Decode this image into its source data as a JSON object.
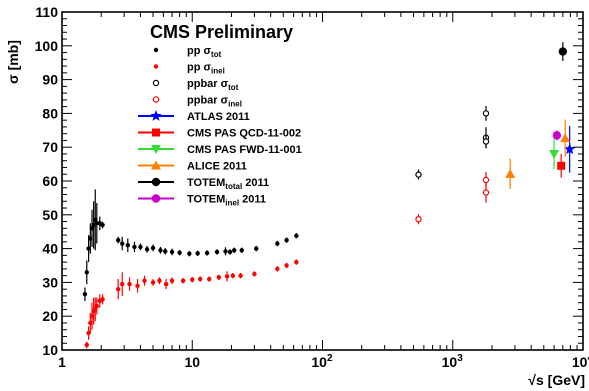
{
  "chart_data": {
    "type": "scatter",
    "title": "CMS Preliminary",
    "xlabel": "√s [GeV]",
    "ylabel": "σ [mb]",
    "x_scale": "log",
    "xlim": [
      1,
      10000
    ],
    "ylim": [
      10,
      110
    ],
    "x_tick_labels": [
      "1",
      "10",
      "10",
      "10",
      "10"
    ],
    "x_tick_label_exponents": [
      "",
      "",
      "2",
      "3",
      "4"
    ],
    "y_tick_labels": [
      "10",
      "20",
      "30",
      "40",
      "50",
      "60",
      "70",
      "80",
      "90",
      "100",
      "110"
    ],
    "grid": false,
    "legend_position": "top-left",
    "series": [
      {
        "name": "pp σ_tot",
        "label_main": "pp σ",
        "label_sub": "tot",
        "color": "#000000",
        "marker": "dot",
        "points": [
          {
            "x": 1.5,
            "y": 26.5,
            "err": 2.0
          },
          {
            "x": 1.55,
            "y": 33.0,
            "err": 3.5
          },
          {
            "x": 1.6,
            "y": 40.0,
            "err": 4.0
          },
          {
            "x": 1.65,
            "y": 43.0,
            "err": 4.5
          },
          {
            "x": 1.7,
            "y": 46.0,
            "err": 5.5
          },
          {
            "x": 1.75,
            "y": 47.0,
            "err": 7.0
          },
          {
            "x": 1.8,
            "y": 48.5,
            "err": 9.0
          },
          {
            "x": 1.85,
            "y": 47.5,
            "err": 6.0
          },
          {
            "x": 1.95,
            "y": 47.5,
            "err": 2.0
          },
          {
            "x": 2.05,
            "y": 47.0,
            "err": 1.0
          },
          {
            "x": 2.7,
            "y": 42.5,
            "err": 1.0
          },
          {
            "x": 2.9,
            "y": 41.5,
            "err": 2.0
          },
          {
            "x": 3.2,
            "y": 41.0,
            "err": 2.0
          },
          {
            "x": 3.6,
            "y": 40.5,
            "err": 1.5
          },
          {
            "x": 4.0,
            "y": 40.5,
            "err": 1.0
          },
          {
            "x": 4.5,
            "y": 39.8,
            "err": 1.0
          },
          {
            "x": 5.0,
            "y": 40.2,
            "err": 1.0
          },
          {
            "x": 5.7,
            "y": 39.5,
            "err": 1.0
          },
          {
            "x": 6.2,
            "y": 39.2,
            "err": 1.0
          },
          {
            "x": 7.0,
            "y": 39.0,
            "err": 1.0
          },
          {
            "x": 8.0,
            "y": 38.8,
            "err": 0.8
          },
          {
            "x": 9.5,
            "y": 38.5,
            "err": 0.8
          },
          {
            "x": 11.0,
            "y": 38.6,
            "err": 0.8
          },
          {
            "x": 13.0,
            "y": 38.7,
            "err": 0.8
          },
          {
            "x": 15.5,
            "y": 39.0,
            "err": 0.8
          },
          {
            "x": 18.0,
            "y": 39.2,
            "err": 1.2
          },
          {
            "x": 19.5,
            "y": 39.0,
            "err": 0.8
          },
          {
            "x": 21.0,
            "y": 39.5,
            "err": 0.8
          },
          {
            "x": 24.0,
            "y": 39.5,
            "err": 0.8
          },
          {
            "x": 31.0,
            "y": 40.0,
            "err": 0.8
          },
          {
            "x": 45.0,
            "y": 41.5,
            "err": 0.8
          },
          {
            "x": 53.0,
            "y": 42.5,
            "err": 0.8
          },
          {
            "x": 63.0,
            "y": 43.8,
            "err": 0.8
          }
        ]
      },
      {
        "name": "pp σ_inel",
        "label_main": "pp σ",
        "label_sub": "inel",
        "color": "#ff0000",
        "marker": "dot",
        "points": [
          {
            "x": 1.55,
            "y": 11.5,
            "err": 1.0
          },
          {
            "x": 1.6,
            "y": 15.0,
            "err": 2.0
          },
          {
            "x": 1.65,
            "y": 18.0,
            "err": 3.0
          },
          {
            "x": 1.7,
            "y": 20.0,
            "err": 4.0
          },
          {
            "x": 1.75,
            "y": 21.5,
            "err": 4.0
          },
          {
            "x": 1.8,
            "y": 22.0,
            "err": 3.5
          },
          {
            "x": 1.85,
            "y": 23.0,
            "err": 2.5
          },
          {
            "x": 1.95,
            "y": 24.5,
            "err": 2.0
          },
          {
            "x": 2.05,
            "y": 25.0,
            "err": 1.5
          },
          {
            "x": 2.7,
            "y": 28.0,
            "err": 3.0
          },
          {
            "x": 2.9,
            "y": 29.5,
            "err": 3.5
          },
          {
            "x": 3.3,
            "y": 29.5,
            "err": 2.0
          },
          {
            "x": 3.8,
            "y": 29.0,
            "err": 2.0
          },
          {
            "x": 4.3,
            "y": 30.5,
            "err": 1.5
          },
          {
            "x": 5.0,
            "y": 30.0,
            "err": 1.0
          },
          {
            "x": 5.6,
            "y": 30.5,
            "err": 1.0
          },
          {
            "x": 6.3,
            "y": 29.5,
            "err": 1.5
          },
          {
            "x": 7.0,
            "y": 30.5,
            "err": 1.0
          },
          {
            "x": 8.5,
            "y": 30.5,
            "err": 0.8
          },
          {
            "x": 10.0,
            "y": 30.8,
            "err": 0.8
          },
          {
            "x": 11.5,
            "y": 31.0,
            "err": 0.8
          },
          {
            "x": 13.5,
            "y": 31.0,
            "err": 0.8
          },
          {
            "x": 16.0,
            "y": 31.5,
            "err": 0.8
          },
          {
            "x": 18.5,
            "y": 31.8,
            "err": 1.5
          },
          {
            "x": 20.5,
            "y": 32.0,
            "err": 0.8
          },
          {
            "x": 23.5,
            "y": 32.0,
            "err": 0.8
          },
          {
            "x": 30.0,
            "y": 32.5,
            "err": 0.8
          },
          {
            "x": 45.0,
            "y": 34.0,
            "err": 0.8
          },
          {
            "x": 53.0,
            "y": 35.0,
            "err": 0.8
          },
          {
            "x": 63.0,
            "y": 36.0,
            "err": 0.8
          }
        ]
      },
      {
        "name": "ppbar σ_tot",
        "label_main": "ppbar σ",
        "label_sub": "tot",
        "color": "#000000",
        "marker": "open-circle",
        "points": [
          {
            "x": 546,
            "y": 61.9,
            "err": 1.5
          },
          {
            "x": 1800,
            "y": 80.0,
            "err": 2.2
          },
          {
            "x": 1800,
            "y": 72.8,
            "err": 3.1
          },
          {
            "x": 1800,
            "y": 71.7,
            "err": 2.0
          }
        ]
      },
      {
        "name": "ppbar σ_inel",
        "label_main": "ppbar σ",
        "label_sub": "inel",
        "color": "#ff0000",
        "marker": "open-circle",
        "points": [
          {
            "x": 546,
            "y": 48.7,
            "err": 1.5
          },
          {
            "x": 1800,
            "y": 60.3,
            "err": 2.4
          },
          {
            "x": 1800,
            "y": 56.6,
            "err": 3.0
          }
        ]
      },
      {
        "name": "ATLAS 2011",
        "color": "#0000ff",
        "marker": "star",
        "points": [
          {
            "x": 7900,
            "y": 69.4,
            "err": 6.9
          }
        ]
      },
      {
        "name": "CMS PAS QCD-11-002",
        "color": "#ff0000",
        "marker": "square",
        "points": [
          {
            "x": 6800,
            "y": 64.5,
            "err": 3.5
          }
        ]
      },
      {
        "name": "CMS PAS FWD-11-001",
        "color": "#33dd33",
        "marker": "triangle-down",
        "points": [
          {
            "x": 6000,
            "y": 68.0,
            "err": 4.5
          }
        ]
      },
      {
        "name": "ALICE 2011",
        "color": "#ff7f00",
        "marker": "triangle-up",
        "points": [
          {
            "x": 2760,
            "y": 62.1,
            "err": 4.5
          },
          {
            "x": 7300,
            "y": 72.7,
            "err": 5.5
          }
        ]
      },
      {
        "name": "TOTEM_total 2011",
        "label_main": "TOTEM",
        "label_sub": "total",
        "label_tail": " 2011",
        "color": "#000000",
        "marker": "big-dot",
        "points": [
          {
            "x": 7000,
            "y": 98.3,
            "err": 2.8
          }
        ]
      },
      {
        "name": "TOTEM_inel 2011",
        "label_main": "TOTEM",
        "label_sub": "inel",
        "label_tail": " 2011",
        "color": "#cc00cc",
        "marker": "big-dot",
        "points": [
          {
            "x": 6300,
            "y": 73.5,
            "err": 1.5
          }
        ]
      }
    ]
  }
}
